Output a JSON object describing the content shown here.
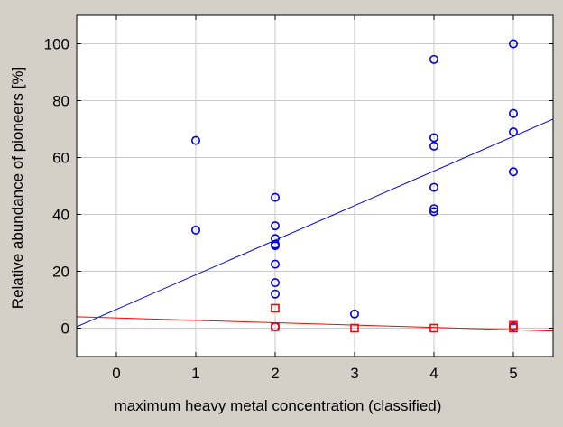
{
  "chart_data": {
    "type": "scatter",
    "title": "",
    "xlabel": "maximum heavy metal concentration (classified)",
    "ylabel": "Relative abundance of pioneers [%]",
    "xlim": [
      -0.5,
      5.5
    ],
    "ylim": [
      -10,
      110
    ],
    "xticks": [
      0,
      1,
      2,
      3,
      4,
      5
    ],
    "yticks": [
      0,
      20,
      40,
      60,
      80,
      100
    ],
    "grid": true,
    "background": "#d4d0c8",
    "plot_background": "#ffffff",
    "series": [
      {
        "marker": "circle",
        "color": "#0000cc",
        "points": [
          [
            1,
            66
          ],
          [
            1,
            34.5
          ],
          [
            2,
            46
          ],
          [
            2,
            36
          ],
          [
            2,
            31.5
          ],
          [
            2,
            29.5
          ],
          [
            2,
            29
          ],
          [
            2,
            22.5
          ],
          [
            2,
            16
          ],
          [
            2,
            12
          ],
          [
            2,
            0.5
          ],
          [
            3,
            5
          ],
          [
            4,
            94.5
          ],
          [
            4,
            67
          ],
          [
            4,
            64
          ],
          [
            4,
            49.5
          ],
          [
            4,
            42
          ],
          [
            4,
            41
          ],
          [
            5,
            100
          ],
          [
            5,
            75.5
          ],
          [
            5,
            69
          ],
          [
            5,
            55
          ],
          [
            5,
            0.5
          ]
        ],
        "fit": {
          "x": [
            -0.5,
            5.5
          ],
          "y": [
            0.5,
            73.5
          ]
        }
      },
      {
        "marker": "square",
        "color": "#ff0000",
        "points": [
          [
            2,
            7
          ],
          [
            2,
            0.5
          ],
          [
            3,
            0
          ],
          [
            4,
            0
          ],
          [
            5,
            1
          ],
          [
            5,
            0
          ]
        ],
        "fit": {
          "x": [
            -0.5,
            5.5
          ],
          "y": [
            4,
            -1
          ]
        }
      }
    ]
  }
}
